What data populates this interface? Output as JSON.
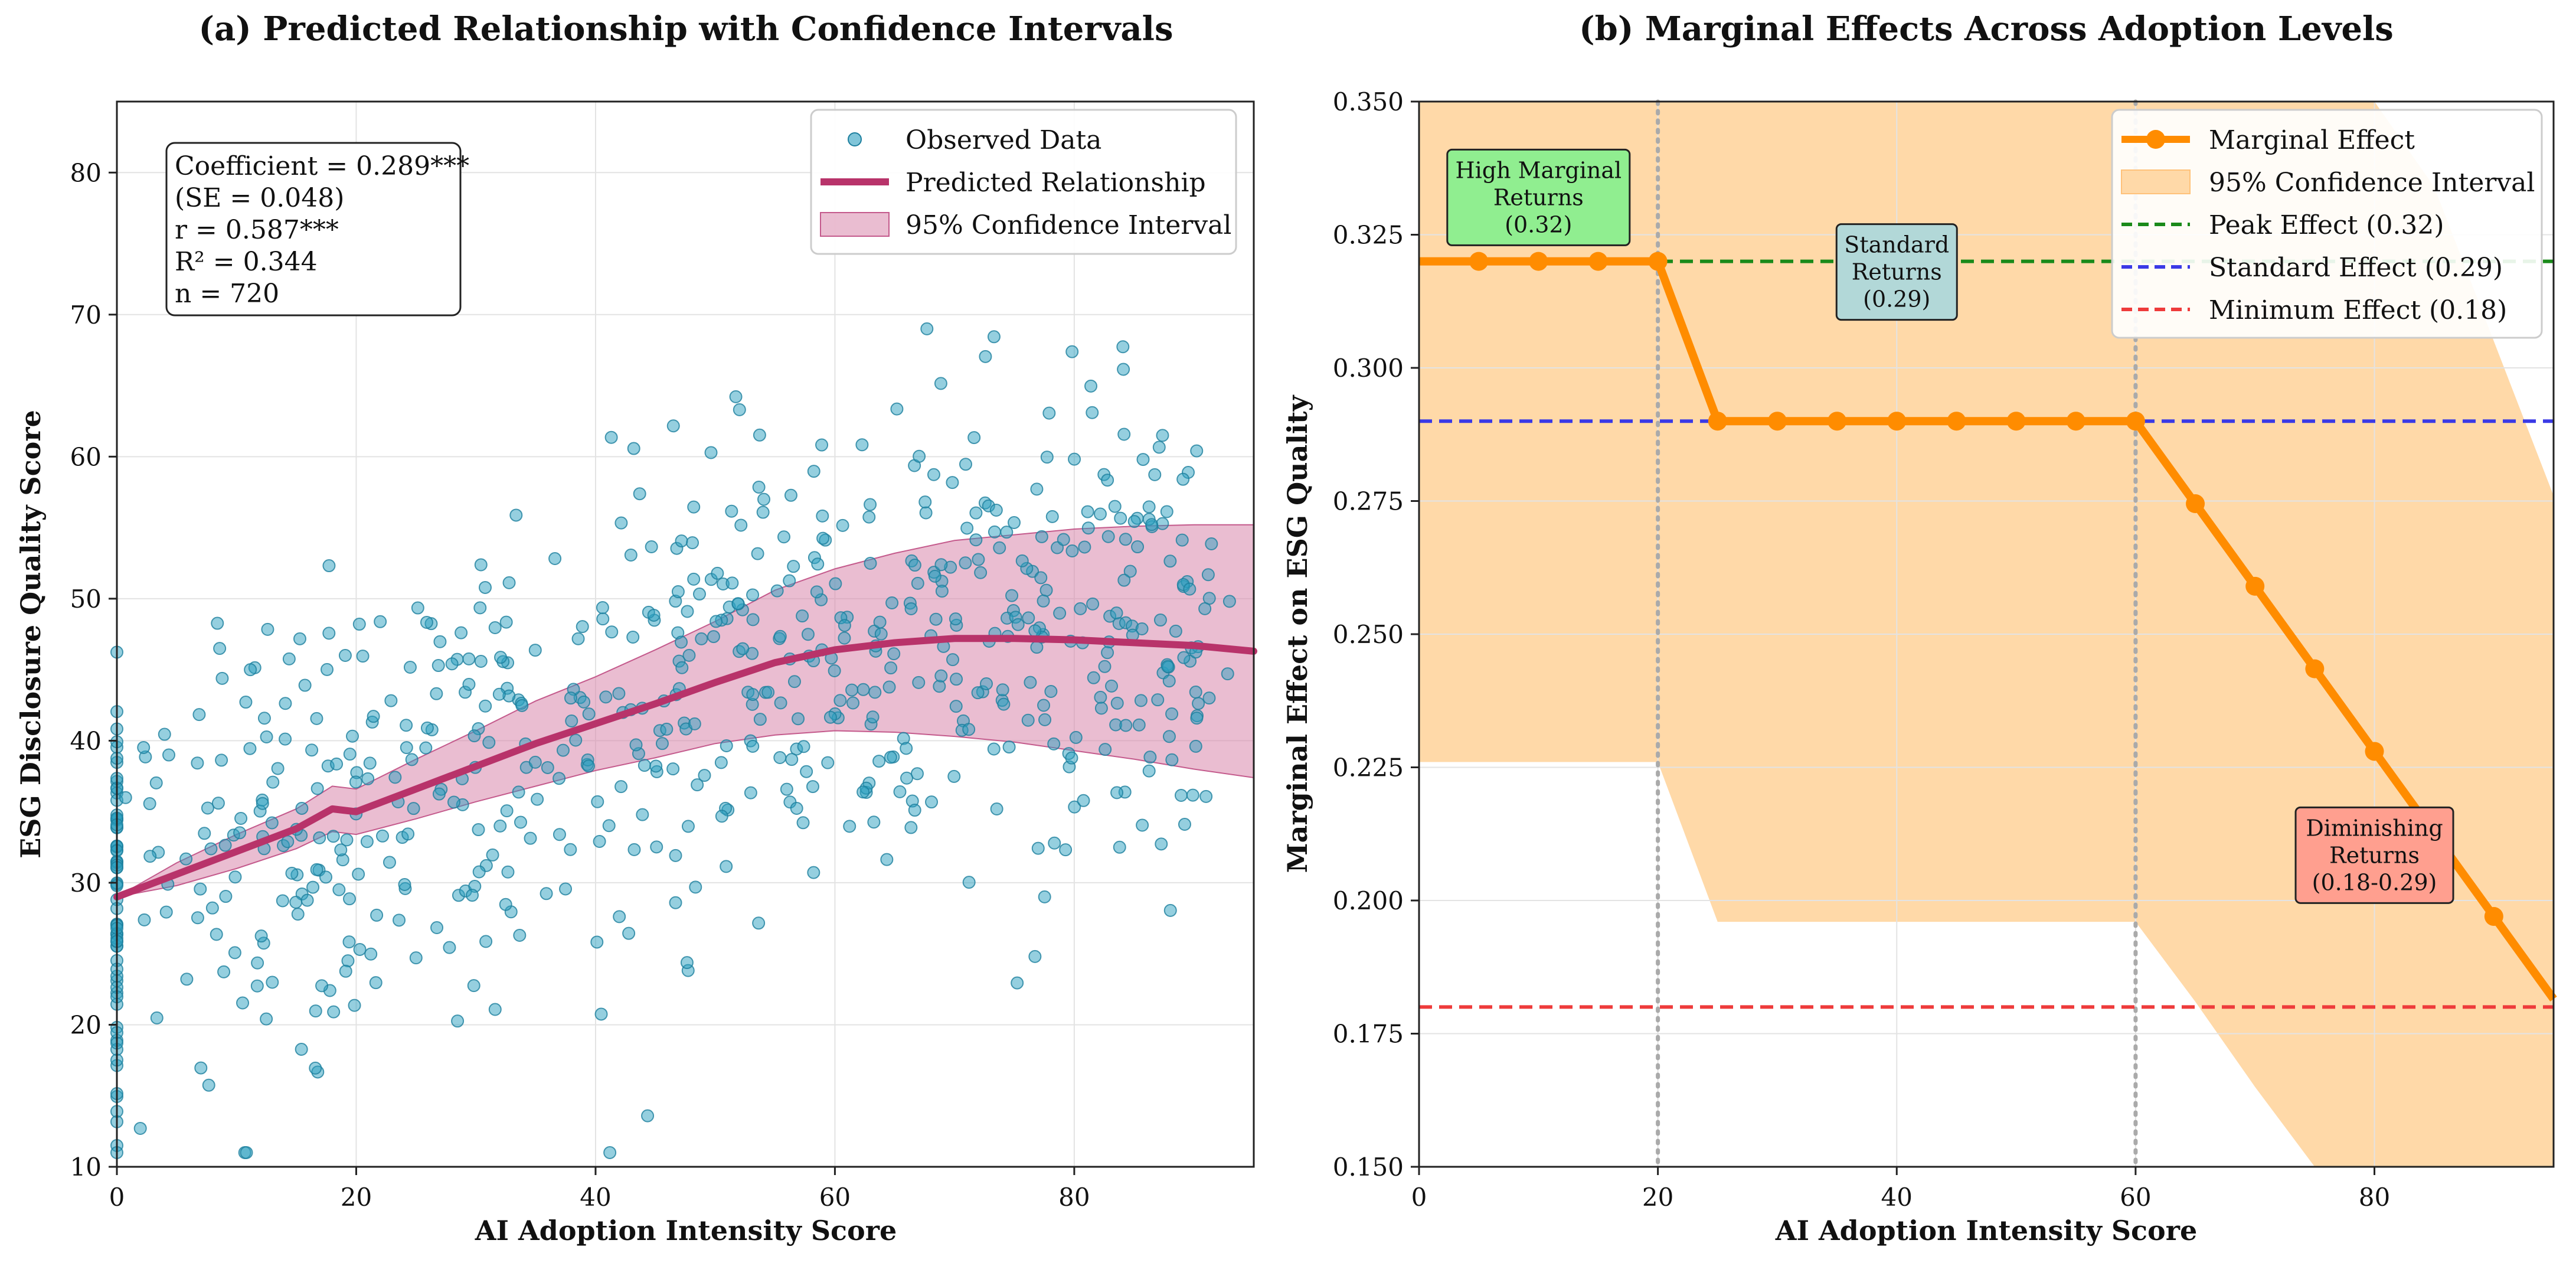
{
  "chart_data": [
    {
      "type": "scatter",
      "title": "(a) Predicted Relationship with Confidence Intervals",
      "xlabel": "AI Adoption Intensity Score",
      "ylabel": "ESG Disclosure Quality Score",
      "xlim": [
        0,
        95
      ],
      "ylim": [
        10,
        85
      ],
      "xticks": [
        0,
        20,
        40,
        60,
        80
      ],
      "xtick_labels": [
        "0",
        "20",
        "40",
        "60",
        "80"
      ],
      "yticks": [
        10,
        20,
        30,
        40,
        50,
        60,
        70,
        80
      ],
      "ytick_labels": [
        "10",
        "20",
        "30",
        "40",
        "50",
        "60",
        "70",
        "80"
      ],
      "grid": true,
      "legend_position": "top-right",
      "legend": [
        "Observed Data",
        "Predicted Relationship",
        "95% Confidence Interval"
      ],
      "stats": [
        "Coefficient = 0.289***",
        "(SE = 0.048)",
        "r = 0.587***",
        "R² = 0.344",
        "n = 720"
      ],
      "colors": {
        "points": "#2b9fc0",
        "points_edge": "#1d7f9e",
        "line": "#b8336a",
        "band": "#d987ab"
      },
      "predicted": {
        "x": [
          0,
          5,
          10,
          15,
          18,
          20,
          25,
          30,
          35,
          40,
          45,
          50,
          55,
          60,
          65,
          70,
          75,
          80,
          85,
          90,
          95
        ],
        "y": [
          29,
          30.6,
          32.2,
          33.8,
          35.2,
          35.0,
          36.6,
          38.2,
          39.8,
          41.2,
          42.6,
          44.1,
          45.5,
          46.4,
          46.9,
          47.2,
          47.2,
          47.1,
          46.9,
          46.7,
          46.3
        ]
      },
      "ci_lower": [
        29,
        29.8,
        31.0,
        32.4,
        33.6,
        33.4,
        34.5,
        35.7,
        36.8,
        37.9,
        38.8,
        39.8,
        40.4,
        40.7,
        40.6,
        40.3,
        39.9,
        39.3,
        38.7,
        38.0,
        37.4
      ],
      "ci_upper": [
        29,
        31.4,
        33.4,
        35.2,
        36.8,
        36.6,
        38.7,
        40.7,
        42.8,
        44.5,
        46.4,
        48.4,
        50.6,
        52.1,
        53.2,
        54.1,
        54.5,
        54.9,
        55.1,
        55.2,
        55.2
      ],
      "observed_sample_count": 720
    },
    {
      "type": "line",
      "title": "(b) Marginal Effects Across Adoption Levels",
      "xlabel": "AI Adoption Intensity Score",
      "ylabel": "Marginal Effect on ESG Quality",
      "xlim": [
        0,
        95
      ],
      "ylim": [
        0.15,
        0.35
      ],
      "xticks": [
        0,
        20,
        40,
        60,
        80
      ],
      "xtick_labels": [
        "0",
        "20",
        "40",
        "60",
        "80"
      ],
      "yticks": [
        0.15,
        0.175,
        0.2,
        0.225,
        0.25,
        0.275,
        0.3,
        0.325,
        0.35
      ],
      "ytick_labels": [
        "0.150",
        "0.175",
        "0.200",
        "0.225",
        "0.250",
        "0.275",
        "0.300",
        "0.325",
        "0.350"
      ],
      "grid": true,
      "legend_position": "top-right",
      "legend": [
        "Marginal Effect",
        "95% Confidence Interval",
        "Peak Effect (0.32)",
        "Standard Effect (0.29)",
        "Minimum Effect (0.18)"
      ],
      "colors": {
        "line": "#ff8c00",
        "band": "#ffd9a8",
        "peak": "#1a8a1a",
        "standard": "#3a3ae6",
        "minimum": "#ee3b3b",
        "vline": "#aaaaaa"
      },
      "marginal": {
        "x": [
          0,
          5,
          10,
          15,
          20,
          25,
          30,
          35,
          40,
          45,
          50,
          55,
          60,
          65,
          70,
          75,
          80,
          85,
          90,
          95
        ],
        "y": [
          0.32,
          0.32,
          0.32,
          0.32,
          0.32,
          0.29,
          0.29,
          0.29,
          0.29,
          0.29,
          0.29,
          0.29,
          0.29,
          0.2745,
          0.259,
          0.2435,
          0.228,
          0.2125,
          0.197,
          0.1815
        ]
      },
      "marker_x": [
        5,
        10,
        15,
        20,
        25,
        30,
        35,
        40,
        45,
        50,
        55,
        60,
        65,
        70,
        75,
        80,
        90
      ],
      "ci_lower": [
        0.226,
        0.226,
        0.226,
        0.226,
        0.226,
        0.196,
        0.196,
        0.196,
        0.196,
        0.196,
        0.196,
        0.196,
        0.196,
        0.181,
        0.165,
        0.15,
        0.15,
        0.15,
        0.15,
        0.15
      ],
      "ci_upper": [
        0.35,
        0.35,
        0.35,
        0.35,
        0.35,
        0.35,
        0.35,
        0.35,
        0.35,
        0.35,
        0.35,
        0.35,
        0.35,
        0.35,
        0.35,
        0.35,
        0.35,
        0.334,
        0.305,
        0.276
      ],
      "reference_lines": {
        "peak": 0.32,
        "standard": 0.29,
        "minimum": 0.18
      },
      "vertical_lines": [
        20,
        60
      ],
      "annotations": [
        {
          "lines": [
            "High Marginal",
            "Returns",
            "(0.32)"
          ],
          "x": 10,
          "y": 0.332,
          "color": "#90ee90"
        },
        {
          "lines": [
            "Standard",
            "Returns",
            "(0.29)"
          ],
          "x": 40,
          "y": 0.318,
          "color": "#b2d8d8"
        },
        {
          "lines": [
            "Diminishing",
            "Returns",
            "(0.18-0.29)"
          ],
          "x": 80,
          "y": 0.2085,
          "color": "#ff9f8f"
        }
      ]
    }
  ]
}
